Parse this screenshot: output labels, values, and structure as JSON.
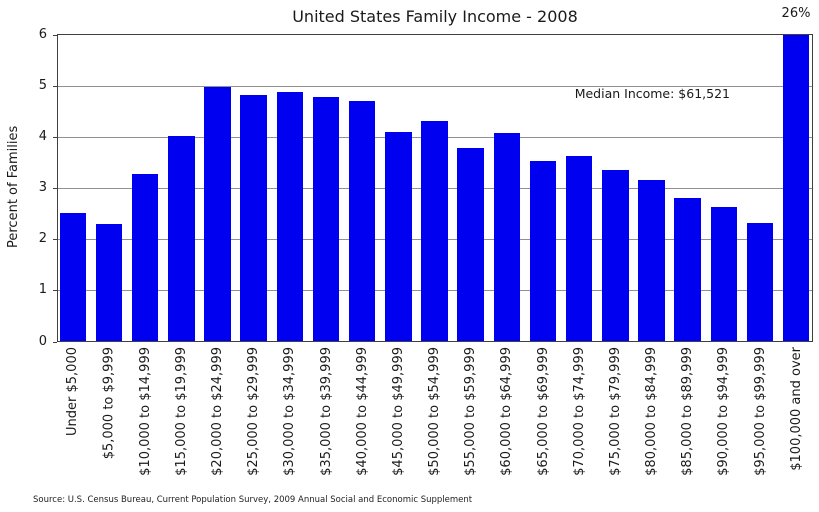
{
  "chart_data": {
    "type": "bar",
    "title": "United States Family Income - 2008",
    "xlabel": "",
    "ylabel": "Percent of Families",
    "ylim": [
      0,
      6
    ],
    "yticks": [
      0,
      1,
      2,
      3,
      4,
      5,
      6
    ],
    "grid": true,
    "legend": false,
    "bar_color": "#0000f0",
    "categories": [
      "Under $5,000",
      "$5,000 to $9,999",
      "$10,000 to $14,999",
      "$15,000 to $19,999",
      "$20,000 to $24,999",
      "$25,000 to $29,999",
      "$30,000 to $34,999",
      "$35,000 to $39,999",
      "$40,000 to $44,999",
      "$45,000 to $49,999",
      "$50,000 to $54,999",
      "$55,000 to $59,999",
      "$60,000 to $64,999",
      "$65,000 to $69,999",
      "$70,000 to $74,999",
      "$75,000 to $79,999",
      "$80,000 to $84,999",
      "$85,000 to $89,999",
      "$90,000 to $94,999",
      "$95,000 to $99,999",
      "$100,000 and over"
    ],
    "values": [
      2.5,
      2.29,
      3.27,
      4.02,
      4.98,
      4.82,
      4.88,
      4.78,
      4.7,
      4.1,
      4.31,
      3.78,
      4.08,
      3.53,
      3.62,
      3.35,
      3.15,
      2.8,
      2.62,
      2.31,
      26
    ],
    "annotations": [
      {
        "id": "median-income",
        "text": "Median Income: $61,521"
      },
      {
        "id": "top-bar-percent",
        "text": "26%"
      }
    ],
    "source_note": "Source: U.S. Census Bureau, Current Population Survey, 2009 Annual Social and Economic Supplement"
  }
}
